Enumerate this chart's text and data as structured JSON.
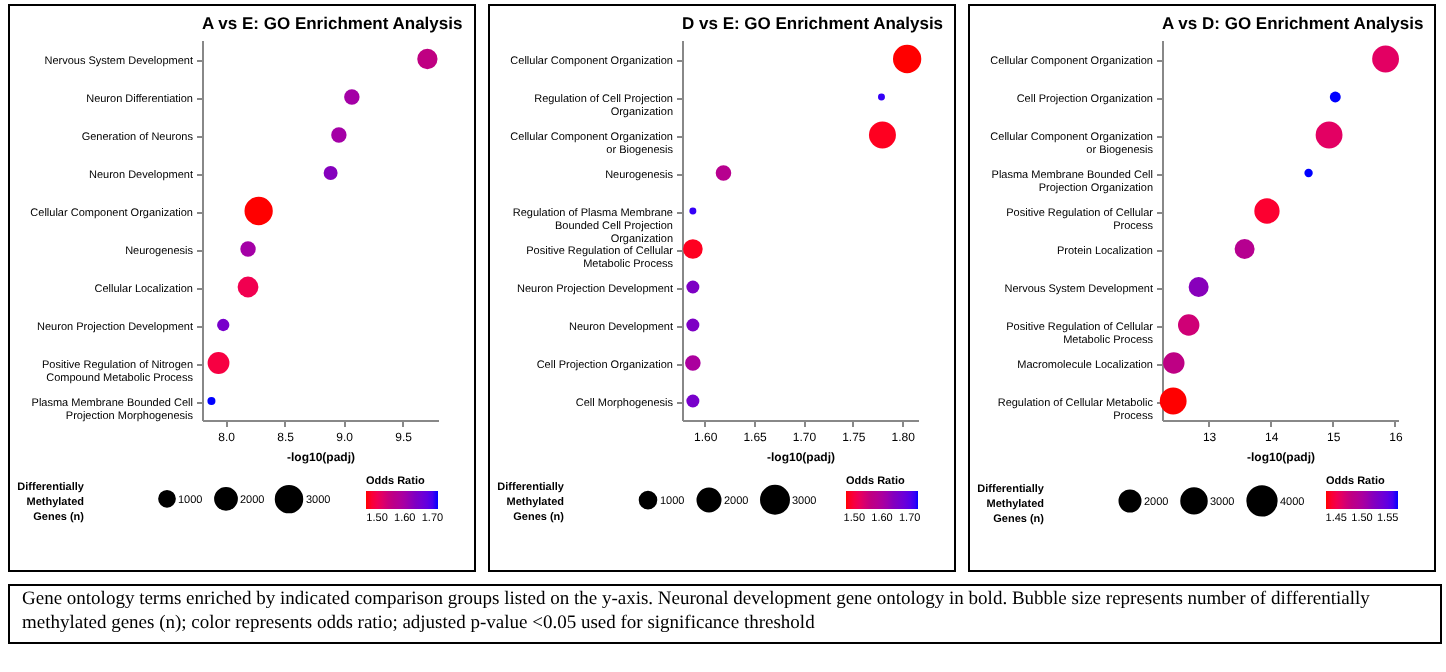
{
  "chart_data": [
    {
      "type": "bubble",
      "orientation": "horizontal",
      "title": "A vs E: GO Enrichment Analysis",
      "xlabel": "-log10(padj)",
      "legend_title": "Differentially Methylated Genes (n)",
      "clabel": "Odds Ratio",
      "categories": [
        "Nervous System Development",
        "Neuron Differentiation",
        "Generation of Neurons",
        "Neuron Development",
        "Cellular Component Organization",
        "Neurogenesis",
        "Cellular Localization",
        "Neuron Projection Development",
        "Positive Regulation of Nitrogen Compound Metabolic Process",
        "Plasma Membrane Bounded Cell Projection Morphogenesis"
      ],
      "values": [
        9.71,
        9.07,
        8.96,
        8.89,
        8.28,
        8.19,
        8.19,
        7.98,
        7.94,
        7.88
      ],
      "sizes": [
        1900,
        1100,
        1100,
        900,
        3700,
        1100,
        2000,
        700,
        2200,
        300
      ],
      "cvalues": [
        1.55,
        1.6,
        1.6,
        1.63,
        1.46,
        1.6,
        1.5,
        1.65,
        1.49,
        1.72
      ],
      "size_legend": [
        1000,
        2000,
        3000
      ],
      "xlim": [
        7.8,
        9.8
      ],
      "xticks": [
        {
          "value": 8,
          "label": "8.0"
        },
        8.5,
        {
          "value": 9,
          "label": "9.0"
        },
        9.5
      ],
      "clim": [
        1.46,
        1.72
      ],
      "cticks": [
        {
          "value": 1.5,
          "label": "1.50"
        },
        {
          "value": 1.6,
          "label": "1.60"
        },
        {
          "value": 1.7,
          "label": "1.70"
        }
      ],
      "annotations": [
        "Gene ontology terms enriched by indicated comparison groups listed on the y-axis. Neuronal development gene ontology in bold. Bubble size represents number of differentially methylated genes (n); color represents odds ratio; adjusted p-value <0.05 used for significance threshold"
      ]
    },
    {
      "type": "bubble",
      "orientation": "horizontal",
      "title": "D vs E: GO Enrichment Analysis",
      "xlabel": "-log10(padj)",
      "legend_title": "Differentially Methylated Genes (n)",
      "clabel": "Odds Ratio",
      "categories": [
        "Cellular Component Organization",
        "Regulation of Cell Projection Organization",
        "Cellular Component Organization or Biogenesis",
        "Neurogenesis",
        "Regulation of Plasma Membrane Bounded Cell Projection Organization",
        "Positive Regulation of Cellular Metabolic Process",
        "Neuron Projection Development",
        "Neuron Development",
        "Cell Projection Organization",
        "Cell Morphogenesis"
      ],
      "values": [
        1.805,
        1.779,
        1.78,
        1.619,
        1.588,
        1.588,
        1.588,
        1.588,
        1.588,
        1.588
      ],
      "sizes": [
        3300,
        200,
        3000,
        1000,
        200,
        1600,
        700,
        700,
        1000,
        700
      ],
      "cvalues": [
        1.47,
        1.72,
        1.48,
        1.58,
        1.72,
        1.48,
        1.65,
        1.65,
        1.6,
        1.66
      ],
      "size_legend": [
        1000,
        2000,
        3000
      ],
      "xlim": [
        1.577,
        1.816
      ],
      "xticks": [
        {
          "value": 1.6,
          "label": "1.60"
        },
        1.65,
        {
          "value": 1.7,
          "label": "1.70"
        },
        1.75,
        {
          "value": 1.8,
          "label": "1.80"
        }
      ],
      "clim": [
        1.47,
        1.73
      ],
      "cticks": [
        {
          "value": 1.5,
          "label": "1.50"
        },
        {
          "value": 1.6,
          "label": "1.60"
        },
        {
          "value": 1.7,
          "label": "1.70"
        }
      ]
    },
    {
      "type": "bubble",
      "orientation": "horizontal",
      "title": "A vs D: GO Enrichment Analysis",
      "xlabel": "-log10(padj)",
      "legend_title": "Differentially Methylated Genes (n)",
      "clabel": "Odds Ratio",
      "categories": [
        "Cellular Component Organization",
        "Cell Projection Organization",
        "Cellular Component Organization or Biogenesis",
        "Plasma Membrane Bounded Cell Projection Organization",
        "Positive Regulation of Cellular Process",
        "Protein Localization",
        "Nervous System Development",
        "Positive Regulation of Cellular Metabolic Process",
        "Macromolecule Localization",
        "Regulation of Cellular Metabolic Process"
      ],
      "values": [
        15.85,
        15.04,
        14.94,
        14.61,
        13.94,
        13.58,
        12.84,
        12.68,
        12.44,
        12.43
      ],
      "sizes": [
        3600,
        600,
        3600,
        350,
        3200,
        2000,
        2000,
        2300,
        2300,
        3600
      ],
      "cvalues": [
        1.46,
        1.57,
        1.46,
        1.57,
        1.44,
        1.49,
        1.52,
        1.47,
        1.48,
        1.43
      ],
      "size_legend": [
        2000,
        3000,
        4000
      ],
      "xlim": [
        12.25,
        16.05
      ],
      "xticks": [
        13,
        14,
        15,
        16
      ],
      "clim": [
        1.43,
        1.57
      ],
      "cticks": [
        1.45,
        {
          "value": 1.5,
          "label": "1.50"
        },
        1.55
      ]
    }
  ]
}
